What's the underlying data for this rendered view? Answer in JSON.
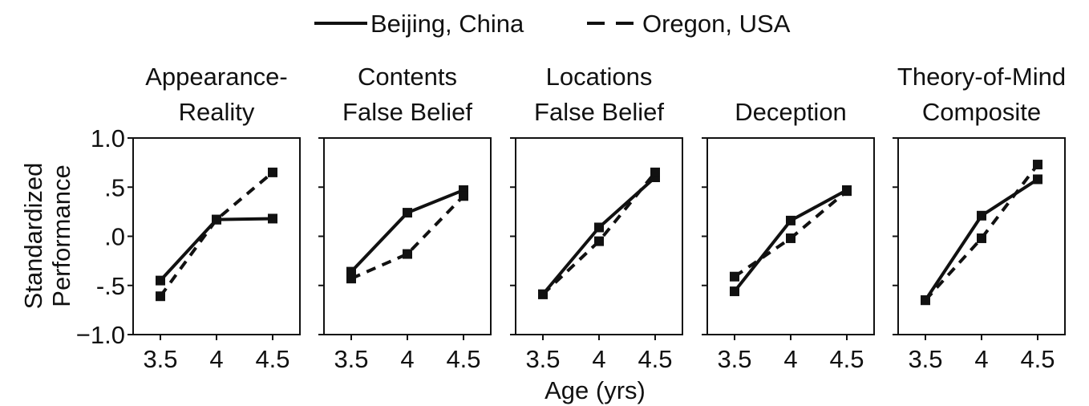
{
  "chart_data": {
    "type": "line",
    "legend": {
      "position": "top-center",
      "entries": [
        {
          "label": "Beijing, China",
          "style": "solid"
        },
        {
          "label": "Oregon, USA",
          "style": "dashed"
        }
      ]
    },
    "ylabel": [
      "Standardized",
      "Performance"
    ],
    "xlabel": "Age (yrs)",
    "x_ticks": [
      "3.5",
      "4",
      "4.5"
    ],
    "y_ticks": [
      {
        "value": 1.0,
        "label": "1.0"
      },
      {
        "value": 0.5,
        "label": ".5"
      },
      {
        "value": 0.0,
        "label": ".0"
      },
      {
        "value": -0.5,
        "label": "-.5"
      },
      {
        "value": -1.0,
        "label": "−1.0"
      }
    ],
    "ylim": [
      -1.0,
      1.0
    ],
    "x": [
      3.5,
      4,
      4.5
    ],
    "grid": false,
    "color": "#111111",
    "panels": [
      {
        "title": [
          "Appearance-",
          "Reality"
        ],
        "series": [
          {
            "name": "Beijing, China",
            "values": [
              -0.45,
              0.17,
              0.18
            ]
          },
          {
            "name": "Oregon, USA",
            "values": [
              -0.61,
              0.17,
              0.65
            ]
          }
        ]
      },
      {
        "title": [
          "Contents",
          "False Belief"
        ],
        "series": [
          {
            "name": "Beijing, China",
            "values": [
              -0.36,
              0.24,
              0.47
            ]
          },
          {
            "name": "Oregon, USA",
            "values": [
              -0.43,
              -0.18,
              0.41
            ]
          }
        ]
      },
      {
        "title": [
          "Locations",
          "False Belief"
        ],
        "series": [
          {
            "name": "Beijing, China",
            "values": [
              -0.59,
              0.09,
              0.6
            ]
          },
          {
            "name": "Oregon, USA",
            "values": [
              -0.59,
              -0.05,
              0.65
            ]
          }
        ]
      },
      {
        "title": [
          "",
          "Deception"
        ],
        "series": [
          {
            "name": "Beijing, China",
            "values": [
              -0.56,
              0.16,
              0.47
            ]
          },
          {
            "name": "Oregon, USA",
            "values": [
              -0.41,
              -0.02,
              0.46
            ]
          }
        ]
      },
      {
        "title": [
          "Theory-of-Mind",
          "Composite"
        ],
        "series": [
          {
            "name": "Beijing, China",
            "values": [
              -0.65,
              0.21,
              0.58
            ]
          },
          {
            "name": "Oregon, USA",
            "values": [
              -0.65,
              -0.02,
              0.73
            ]
          }
        ]
      }
    ]
  }
}
